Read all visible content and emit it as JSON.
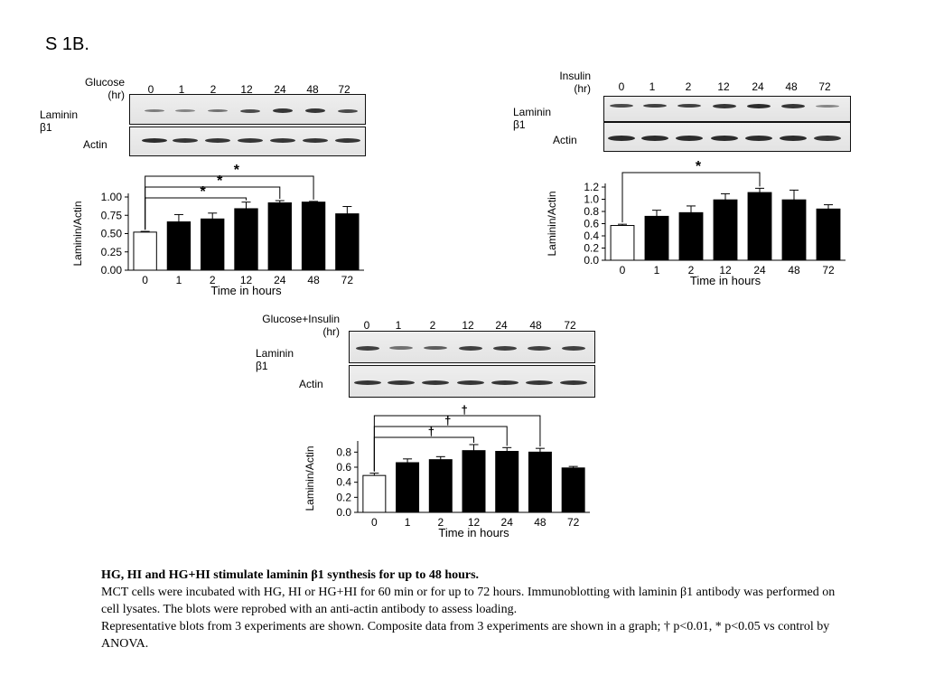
{
  "page_label": "S 1B.",
  "panels": {
    "glucose": {
      "header_label": "Glucose\n(hr)",
      "lanes": [
        "0",
        "1",
        "2",
        "12",
        "24",
        "48",
        "72"
      ],
      "row_label_1": "Laminin β1",
      "row_label_2": "Actin"
    },
    "insulin": {
      "header_label": "Insulin\n(hr)",
      "lanes": [
        "0",
        "1",
        "2",
        "12",
        "24",
        "48",
        "72"
      ],
      "row_label_1": "Laminin β1",
      "row_label_2": "Actin"
    },
    "combo": {
      "header_label": "Glucose+Insulin\n(hr)",
      "lanes": [
        "0",
        "1",
        "2",
        "12",
        "24",
        "48",
        "72"
      ],
      "row_label_1": "Laminin β1",
      "row_label_2": "Actin"
    }
  },
  "chart_data": [
    {
      "type": "bar",
      "categories": [
        "0",
        "1",
        "2",
        "12",
        "24",
        "48",
        "72"
      ],
      "values": [
        0.52,
        0.66,
        0.7,
        0.84,
        0.92,
        0.93,
        0.77
      ],
      "errors": [
        0.01,
        0.1,
        0.08,
        0.09,
        0.03,
        0.01,
        0.1
      ],
      "xlabel": "Time in hours",
      "ylabel": "Laminin/Actin",
      "ylim": [
        0,
        1.0
      ],
      "yticks": [
        "0.00",
        "0.25",
        "0.50",
        "0.75",
        "1.00"
      ],
      "annotations": [
        {
          "from": "0",
          "to": "12",
          "symbol": "*"
        },
        {
          "from": "0",
          "to": "24",
          "symbol": "*"
        },
        {
          "from": "0",
          "to": "48",
          "symbol": "*"
        }
      ]
    },
    {
      "type": "bar",
      "categories": [
        "0",
        "1",
        "2",
        "12",
        "24",
        "48",
        "72"
      ],
      "values": [
        0.57,
        0.72,
        0.78,
        0.99,
        1.11,
        0.99,
        0.84
      ],
      "errors": [
        0.02,
        0.1,
        0.11,
        0.1,
        0.07,
        0.16,
        0.07
      ],
      "xlabel": "Time in hours",
      "ylabel": "Laminin/Actin",
      "ylim": [
        0,
        1.2
      ],
      "yticks": [
        "0.0",
        "0.2",
        "0.4",
        "0.6",
        "0.8",
        "1.0",
        "1.2"
      ],
      "annotations": [
        {
          "from": "0",
          "to": "24",
          "symbol": "*"
        }
      ]
    },
    {
      "type": "bar",
      "categories": [
        "0",
        "1",
        "2",
        "12",
        "24",
        "48",
        "72"
      ],
      "values": [
        0.49,
        0.66,
        0.7,
        0.82,
        0.81,
        0.8,
        0.59
      ],
      "errors": [
        0.03,
        0.05,
        0.04,
        0.08,
        0.05,
        0.05,
        0.02
      ],
      "xlabel": "Time in hours",
      "ylabel": "Laminin/Actin",
      "ylim": [
        0,
        0.9
      ],
      "yticks": [
        "0.0",
        "0.2",
        "0.4",
        "0.6",
        "0.8"
      ],
      "annotations": [
        {
          "from": "0",
          "to": "12",
          "symbol": "†"
        },
        {
          "from": "0",
          "to": "24",
          "symbol": "†"
        },
        {
          "from": "0",
          "to": "48",
          "symbol": "†"
        }
      ]
    }
  ],
  "caption": {
    "title": "HG, HI and HG+HI stimulate laminin β1 synthesis for up to 48 hours.",
    "body": "MCT cells were incubated with HG, HI or HG+HI for 60 min or for up to 72 hours. Immunoblotting with laminin β1 antibody was performed on cell lysates. The blots were reprobed with an anti-actin antibody to assess loading.",
    "legend": "Representative blots from 3 experiments are shown. Composite data from 3 experiments are shown in a graph; † p<0.01, * p<0.05 vs control by ANOVA."
  }
}
